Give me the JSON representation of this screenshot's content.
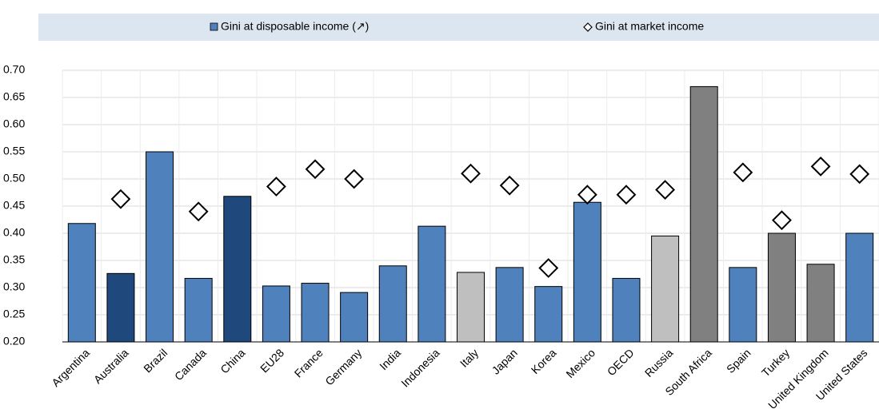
{
  "chart_data": {
    "type": "bar",
    "categories": [
      "Argentina",
      "Australia",
      "Brazil",
      "Canada",
      "China",
      "EU28",
      "France",
      "Germany",
      "India",
      "Indonesia",
      "Italy",
      "Japan",
      "Korea",
      "Mexico",
      "OECD",
      "Russia",
      "South Africa",
      "Spain",
      "Turkey",
      "United Kingdom",
      "United States"
    ],
    "series": [
      {
        "name": "Gini at disposable income (↗)",
        "color": "#4f81bd",
        "colors": [
          "#4f81bd",
          "#1f497d",
          "#4f81bd",
          "#4f81bd",
          "#1f497d",
          "#4f81bd",
          "#4f81bd",
          "#4f81bd",
          "#4f81bd",
          "#4f81bd",
          "#bfbfbf",
          "#4f81bd",
          "#4f81bd",
          "#4f81bd",
          "#4f81bd",
          "#bfbfbf",
          "#808080",
          "#4f81bd",
          "#808080",
          "#808080",
          "#4f81bd"
        ],
        "values": [
          0.418,
          0.326,
          0.55,
          0.317,
          0.468,
          0.303,
          0.308,
          0.291,
          0.34,
          0.413,
          0.328,
          0.337,
          0.302,
          0.457,
          0.317,
          0.395,
          0.67,
          0.337,
          0.4,
          0.343,
          0.4
        ]
      },
      {
        "name": "Gini at market income",
        "color": "#ffffff",
        "marker": "diamond",
        "values": [
          null,
          0.463,
          null,
          0.44,
          null,
          0.486,
          0.518,
          0.5,
          null,
          null,
          0.51,
          0.488,
          0.336,
          0.471,
          0.471,
          0.48,
          null,
          0.512,
          0.424,
          0.523,
          0.509
        ]
      }
    ],
    "ylim": [
      0.2,
      0.7
    ],
    "yticks": [
      {
        "value": 0.2,
        "label": "0.20"
      },
      {
        "value": 0.25,
        "label": "0.25"
      },
      {
        "value": 0.3,
        "label": "0.30"
      },
      {
        "value": 0.35,
        "label": "0.35"
      },
      {
        "value": 0.4,
        "label": "0.40"
      },
      {
        "value": 0.45,
        "label": "0.45"
      },
      {
        "value": 0.5,
        "label": "0.50"
      },
      {
        "value": 0.55,
        "label": "0.55"
      },
      {
        "value": 0.6,
        "label": "0.60"
      },
      {
        "value": 0.65,
        "label": "0.65"
      },
      {
        "value": 0.7,
        "label": "0.70"
      }
    ],
    "grid": true,
    "legend": "top"
  }
}
